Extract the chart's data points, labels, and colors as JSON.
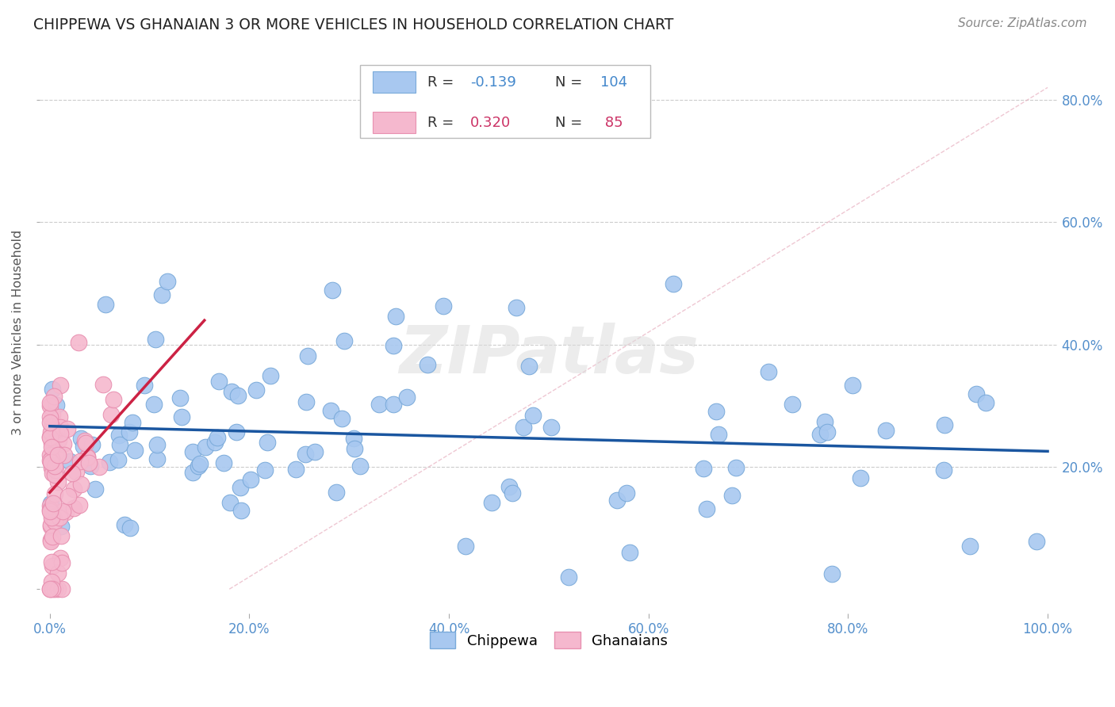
{
  "title": "CHIPPEWA VS GHANAIAN 3 OR MORE VEHICLES IN HOUSEHOLD CORRELATION CHART",
  "source": "Source: ZipAtlas.com",
  "ylabel": "3 or more Vehicles in Household",
  "watermark": "ZIPatlas",
  "background_color": "#ffffff",
  "chippewa_color": "#a8c8f0",
  "chippewa_edge_color": "#7aaada",
  "ghanaian_color": "#f5b8ce",
  "ghanaian_edge_color": "#e890b0",
  "chippewa_line_color": "#1a56a0",
  "ghanaian_line_color": "#cc2244",
  "diag_line_color": "#e8b0c0",
  "grid_color": "#cccccc",
  "tick_color": "#5590cc",
  "ylabel_color": "#555555",
  "title_color": "#222222",
  "source_color": "#888888",
  "legend_text_color": "#333333",
  "legend_chip_val_color": "#4488cc",
  "legend_ghan_val_color": "#cc3366",
  "xlim": [
    -0.01,
    1.01
  ],
  "ylim": [
    -0.04,
    0.88
  ],
  "xtick_vals": [
    0.0,
    0.2,
    0.4,
    0.6,
    0.8,
    1.0
  ],
  "xtick_labels": [
    "0.0%",
    "20.0%",
    "40.0%",
    "60.0%",
    "80.0%",
    "100.0%"
  ],
  "ytick_vals": [
    0.0,
    0.2,
    0.4,
    0.6,
    0.8
  ],
  "ytick_labels": [
    "",
    "20.0%",
    "40.0%",
    "60.0%",
    "80.0%"
  ],
  "chippewa_R": "-0.139",
  "chippewa_N": "104",
  "ghanaian_R": "0.320",
  "ghanaian_N": "85",
  "chip_seed": 77,
  "ghan_seed": 42
}
